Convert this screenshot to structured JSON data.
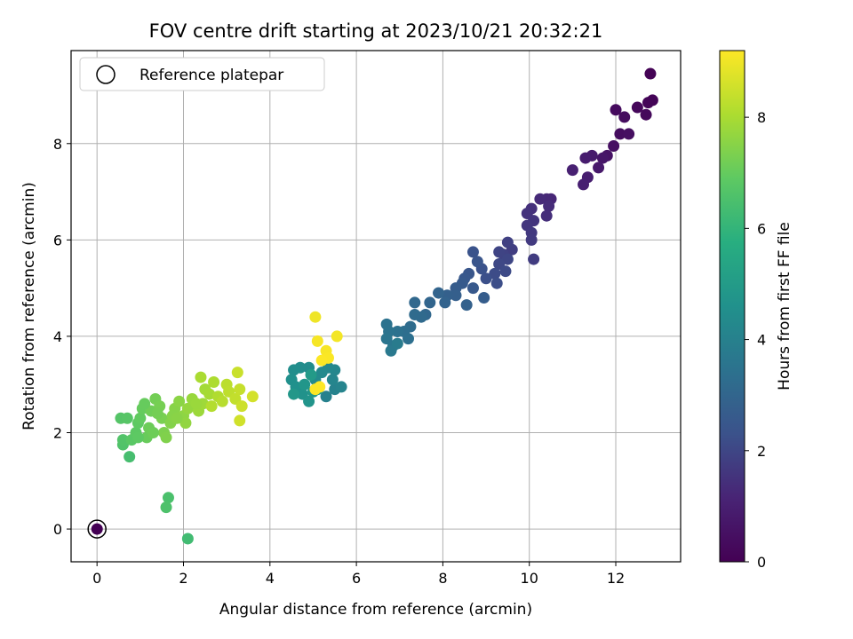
{
  "chart_data": {
    "type": "scatter",
    "title": "FOV centre drift starting at 2023/10/21 20:32:21",
    "xlabel": "Angular distance from reference (arcmin)",
    "ylabel": "Rotation from reference (arcmin)",
    "xlim": [
      -0.6,
      13.5
    ],
    "ylim": [
      -0.68,
      9.93
    ],
    "xticks": [
      0,
      2,
      4,
      6,
      8,
      10,
      12
    ],
    "yticks": [
      0,
      2,
      4,
      6,
      8
    ],
    "grid": true,
    "legend": {
      "placement": "top-left",
      "entries": [
        "Reference platepar"
      ]
    },
    "colorbar": {
      "label": "Hours from first FF file",
      "colormap": "viridis",
      "range": [
        0,
        9.2
      ],
      "ticks": [
        0,
        2,
        4,
        6,
        8
      ]
    },
    "reference_point": {
      "x": 0,
      "y": 0,
      "label": "Reference platepar"
    },
    "points": [
      {
        "x": 0.0,
        "y": 0.0,
        "t": 0.0
      },
      {
        "x": 12.8,
        "y": 9.45,
        "t": 0.05
      },
      {
        "x": 12.85,
        "y": 8.9,
        "t": 0.1
      },
      {
        "x": 12.75,
        "y": 8.85,
        "t": 0.12
      },
      {
        "x": 12.5,
        "y": 8.75,
        "t": 0.2
      },
      {
        "x": 12.7,
        "y": 8.6,
        "t": 0.25
      },
      {
        "x": 12.0,
        "y": 8.7,
        "t": 0.3
      },
      {
        "x": 12.2,
        "y": 8.55,
        "t": 0.35
      },
      {
        "x": 12.1,
        "y": 8.2,
        "t": 0.4
      },
      {
        "x": 12.3,
        "y": 8.2,
        "t": 0.45
      },
      {
        "x": 11.95,
        "y": 7.95,
        "t": 0.5
      },
      {
        "x": 11.8,
        "y": 7.75,
        "t": 0.6
      },
      {
        "x": 11.7,
        "y": 7.7,
        "t": 0.7
      },
      {
        "x": 11.6,
        "y": 7.5,
        "t": 0.8
      },
      {
        "x": 11.45,
        "y": 7.75,
        "t": 0.85
      },
      {
        "x": 11.3,
        "y": 7.7,
        "t": 0.9
      },
      {
        "x": 11.35,
        "y": 7.3,
        "t": 0.95
      },
      {
        "x": 11.25,
        "y": 7.15,
        "t": 1.0
      },
      {
        "x": 11.0,
        "y": 7.45,
        "t": 1.05
      },
      {
        "x": 10.5,
        "y": 6.85,
        "t": 1.2
      },
      {
        "x": 10.4,
        "y": 6.85,
        "t": 1.25
      },
      {
        "x": 10.25,
        "y": 6.85,
        "t": 1.3
      },
      {
        "x": 10.45,
        "y": 6.7,
        "t": 1.35
      },
      {
        "x": 10.4,
        "y": 6.5,
        "t": 1.4
      },
      {
        "x": 10.05,
        "y": 6.65,
        "t": 1.45
      },
      {
        "x": 9.95,
        "y": 6.55,
        "t": 1.5
      },
      {
        "x": 10.1,
        "y": 6.4,
        "t": 1.55
      },
      {
        "x": 9.95,
        "y": 6.3,
        "t": 1.6
      },
      {
        "x": 10.05,
        "y": 6.15,
        "t": 1.65
      },
      {
        "x": 10.05,
        "y": 6.0,
        "t": 1.7
      },
      {
        "x": 10.1,
        "y": 5.6,
        "t": 1.75
      },
      {
        "x": 9.6,
        "y": 5.8,
        "t": 1.8
      },
      {
        "x": 9.5,
        "y": 5.95,
        "t": 1.85
      },
      {
        "x": 9.4,
        "y": 5.7,
        "t": 1.9
      },
      {
        "x": 9.3,
        "y": 5.75,
        "t": 1.95
      },
      {
        "x": 9.5,
        "y": 5.6,
        "t": 2.0
      },
      {
        "x": 9.3,
        "y": 5.5,
        "t": 2.05
      },
      {
        "x": 9.45,
        "y": 5.35,
        "t": 2.1
      },
      {
        "x": 9.2,
        "y": 5.3,
        "t": 2.15
      },
      {
        "x": 9.25,
        "y": 5.1,
        "t": 2.2
      },
      {
        "x": 9.0,
        "y": 5.2,
        "t": 2.25
      },
      {
        "x": 8.9,
        "y": 5.4,
        "t": 2.3
      },
      {
        "x": 8.7,
        "y": 5.75,
        "t": 2.35
      },
      {
        "x": 8.8,
        "y": 5.55,
        "t": 2.4
      },
      {
        "x": 8.6,
        "y": 5.3,
        "t": 2.45
      },
      {
        "x": 8.5,
        "y": 5.2,
        "t": 2.5
      },
      {
        "x": 8.7,
        "y": 5.0,
        "t": 2.55
      },
      {
        "x": 8.45,
        "y": 5.1,
        "t": 2.6
      },
      {
        "x": 8.3,
        "y": 5.0,
        "t": 2.65
      },
      {
        "x": 8.95,
        "y": 4.8,
        "t": 2.7
      },
      {
        "x": 8.3,
        "y": 4.85,
        "t": 2.75
      },
      {
        "x": 8.1,
        "y": 4.85,
        "t": 2.8
      },
      {
        "x": 8.55,
        "y": 4.65,
        "t": 2.85
      },
      {
        "x": 8.05,
        "y": 4.7,
        "t": 2.9
      },
      {
        "x": 7.9,
        "y": 4.9,
        "t": 2.95
      },
      {
        "x": 7.7,
        "y": 4.7,
        "t": 3.0
      },
      {
        "x": 7.6,
        "y": 4.45,
        "t": 3.05
      },
      {
        "x": 7.35,
        "y": 4.7,
        "t": 3.1
      },
      {
        "x": 7.5,
        "y": 4.4,
        "t": 3.15
      },
      {
        "x": 7.35,
        "y": 4.45,
        "t": 3.2
      },
      {
        "x": 7.25,
        "y": 4.2,
        "t": 3.25
      },
      {
        "x": 7.1,
        "y": 4.1,
        "t": 3.3
      },
      {
        "x": 7.2,
        "y": 3.95,
        "t": 3.35
      },
      {
        "x": 6.95,
        "y": 4.1,
        "t": 3.4
      },
      {
        "x": 6.7,
        "y": 4.25,
        "t": 3.45
      },
      {
        "x": 6.75,
        "y": 4.1,
        "t": 3.5
      },
      {
        "x": 6.7,
        "y": 3.95,
        "t": 3.55
      },
      {
        "x": 6.85,
        "y": 3.8,
        "t": 3.6
      },
      {
        "x": 6.8,
        "y": 3.7,
        "t": 3.7
      },
      {
        "x": 6.95,
        "y": 3.85,
        "t": 3.8
      },
      {
        "x": 5.3,
        "y": 2.75,
        "t": 4.0
      },
      {
        "x": 5.5,
        "y": 2.9,
        "t": 4.05
      },
      {
        "x": 5.65,
        "y": 2.95,
        "t": 4.1
      },
      {
        "x": 5.45,
        "y": 3.1,
        "t": 4.15
      },
      {
        "x": 5.5,
        "y": 3.3,
        "t": 4.2
      },
      {
        "x": 5.35,
        "y": 3.35,
        "t": 4.25
      },
      {
        "x": 5.2,
        "y": 3.25,
        "t": 4.3
      },
      {
        "x": 5.05,
        "y": 3.1,
        "t": 4.35
      },
      {
        "x": 4.9,
        "y": 3.35,
        "t": 4.4
      },
      {
        "x": 4.7,
        "y": 3.35,
        "t": 4.45
      },
      {
        "x": 4.55,
        "y": 3.3,
        "t": 4.5
      },
      {
        "x": 4.5,
        "y": 3.1,
        "t": 4.55
      },
      {
        "x": 4.6,
        "y": 2.95,
        "t": 4.6
      },
      {
        "x": 4.75,
        "y": 2.8,
        "t": 4.65
      },
      {
        "x": 4.9,
        "y": 2.65,
        "t": 4.7
      },
      {
        "x": 5.0,
        "y": 2.85,
        "t": 4.75
      },
      {
        "x": 4.8,
        "y": 3.0,
        "t": 4.8
      },
      {
        "x": 4.55,
        "y": 2.8,
        "t": 4.85
      },
      {
        "x": 5.1,
        "y": 2.9,
        "t": 4.9
      },
      {
        "x": 4.95,
        "y": 3.2,
        "t": 4.95
      },
      {
        "x": 2.1,
        "y": -0.2,
        "t": 6.3
      },
      {
        "x": 1.65,
        "y": 0.65,
        "t": 6.5
      },
      {
        "x": 1.6,
        "y": 0.45,
        "t": 6.55
      },
      {
        "x": 0.75,
        "y": 1.5,
        "t": 6.4
      },
      {
        "x": 0.6,
        "y": 1.75,
        "t": 6.6
      },
      {
        "x": 0.6,
        "y": 1.85,
        "t": 6.65
      },
      {
        "x": 0.55,
        "y": 2.3,
        "t": 6.7
      },
      {
        "x": 0.7,
        "y": 2.3,
        "t": 6.75
      },
      {
        "x": 0.8,
        "y": 1.85,
        "t": 6.8
      },
      {
        "x": 0.9,
        "y": 2.0,
        "t": 6.85
      },
      {
        "x": 0.95,
        "y": 2.2,
        "t": 6.9
      },
      {
        "x": 1.0,
        "y": 2.3,
        "t": 6.95
      },
      {
        "x": 1.05,
        "y": 2.5,
        "t": 7.0
      },
      {
        "x": 1.15,
        "y": 1.9,
        "t": 7.05
      },
      {
        "x": 1.2,
        "y": 2.1,
        "t": 7.1
      },
      {
        "x": 1.25,
        "y": 2.45,
        "t": 7.15
      },
      {
        "x": 1.35,
        "y": 2.7,
        "t": 7.2
      },
      {
        "x": 1.45,
        "y": 2.55,
        "t": 7.25
      },
      {
        "x": 1.5,
        "y": 2.3,
        "t": 7.3
      },
      {
        "x": 1.55,
        "y": 2.0,
        "t": 7.35
      },
      {
        "x": 1.6,
        "y": 1.9,
        "t": 7.4
      },
      {
        "x": 1.7,
        "y": 2.2,
        "t": 7.45
      },
      {
        "x": 1.8,
        "y": 2.5,
        "t": 7.5
      },
      {
        "x": 1.9,
        "y": 2.65,
        "t": 7.55
      },
      {
        "x": 2.0,
        "y": 2.35,
        "t": 7.6
      },
      {
        "x": 2.05,
        "y": 2.2,
        "t": 7.65
      },
      {
        "x": 2.1,
        "y": 2.5,
        "t": 7.7
      },
      {
        "x": 2.2,
        "y": 2.7,
        "t": 7.75
      },
      {
        "x": 2.35,
        "y": 2.45,
        "t": 7.8
      },
      {
        "x": 2.45,
        "y": 2.6,
        "t": 7.85
      },
      {
        "x": 2.5,
        "y": 2.9,
        "t": 7.9
      },
      {
        "x": 2.6,
        "y": 2.8,
        "t": 7.95
      },
      {
        "x": 2.4,
        "y": 3.15,
        "t": 8.0
      },
      {
        "x": 2.7,
        "y": 3.05,
        "t": 8.05
      },
      {
        "x": 2.8,
        "y": 2.75,
        "t": 8.1
      },
      {
        "x": 2.65,
        "y": 2.55,
        "t": 8.15
      },
      {
        "x": 2.9,
        "y": 2.65,
        "t": 8.2
      },
      {
        "x": 3.0,
        "y": 3.0,
        "t": 8.25
      },
      {
        "x": 3.05,
        "y": 2.85,
        "t": 8.3
      },
      {
        "x": 3.2,
        "y": 2.7,
        "t": 8.35
      },
      {
        "x": 3.3,
        "y": 2.9,
        "t": 8.4
      },
      {
        "x": 3.25,
        "y": 3.25,
        "t": 8.45
      },
      {
        "x": 3.35,
        "y": 2.55,
        "t": 8.5
      },
      {
        "x": 3.3,
        "y": 2.25,
        "t": 8.55
      },
      {
        "x": 3.6,
        "y": 2.75,
        "t": 8.6
      },
      {
        "x": 1.3,
        "y": 2.0,
        "t": 7.12
      },
      {
        "x": 0.95,
        "y": 1.9,
        "t": 6.88
      },
      {
        "x": 1.75,
        "y": 2.35,
        "t": 7.48
      },
      {
        "x": 2.3,
        "y": 2.6,
        "t": 7.78
      },
      {
        "x": 1.4,
        "y": 2.4,
        "t": 7.22
      },
      {
        "x": 1.1,
        "y": 2.6,
        "t": 7.02
      },
      {
        "x": 1.85,
        "y": 2.3,
        "t": 7.52
      },
      {
        "x": 5.05,
        "y": 4.4,
        "t": 9.0
      },
      {
        "x": 5.55,
        "y": 4.0,
        "t": 9.05
      },
      {
        "x": 5.1,
        "y": 3.9,
        "t": 9.1
      },
      {
        "x": 5.3,
        "y": 3.7,
        "t": 9.12
      },
      {
        "x": 5.35,
        "y": 3.55,
        "t": 9.15
      },
      {
        "x": 5.2,
        "y": 3.5,
        "t": 9.18
      },
      {
        "x": 5.05,
        "y": 2.9,
        "t": 9.2
      },
      {
        "x": 5.15,
        "y": 2.95,
        "t": 9.2
      }
    ]
  }
}
